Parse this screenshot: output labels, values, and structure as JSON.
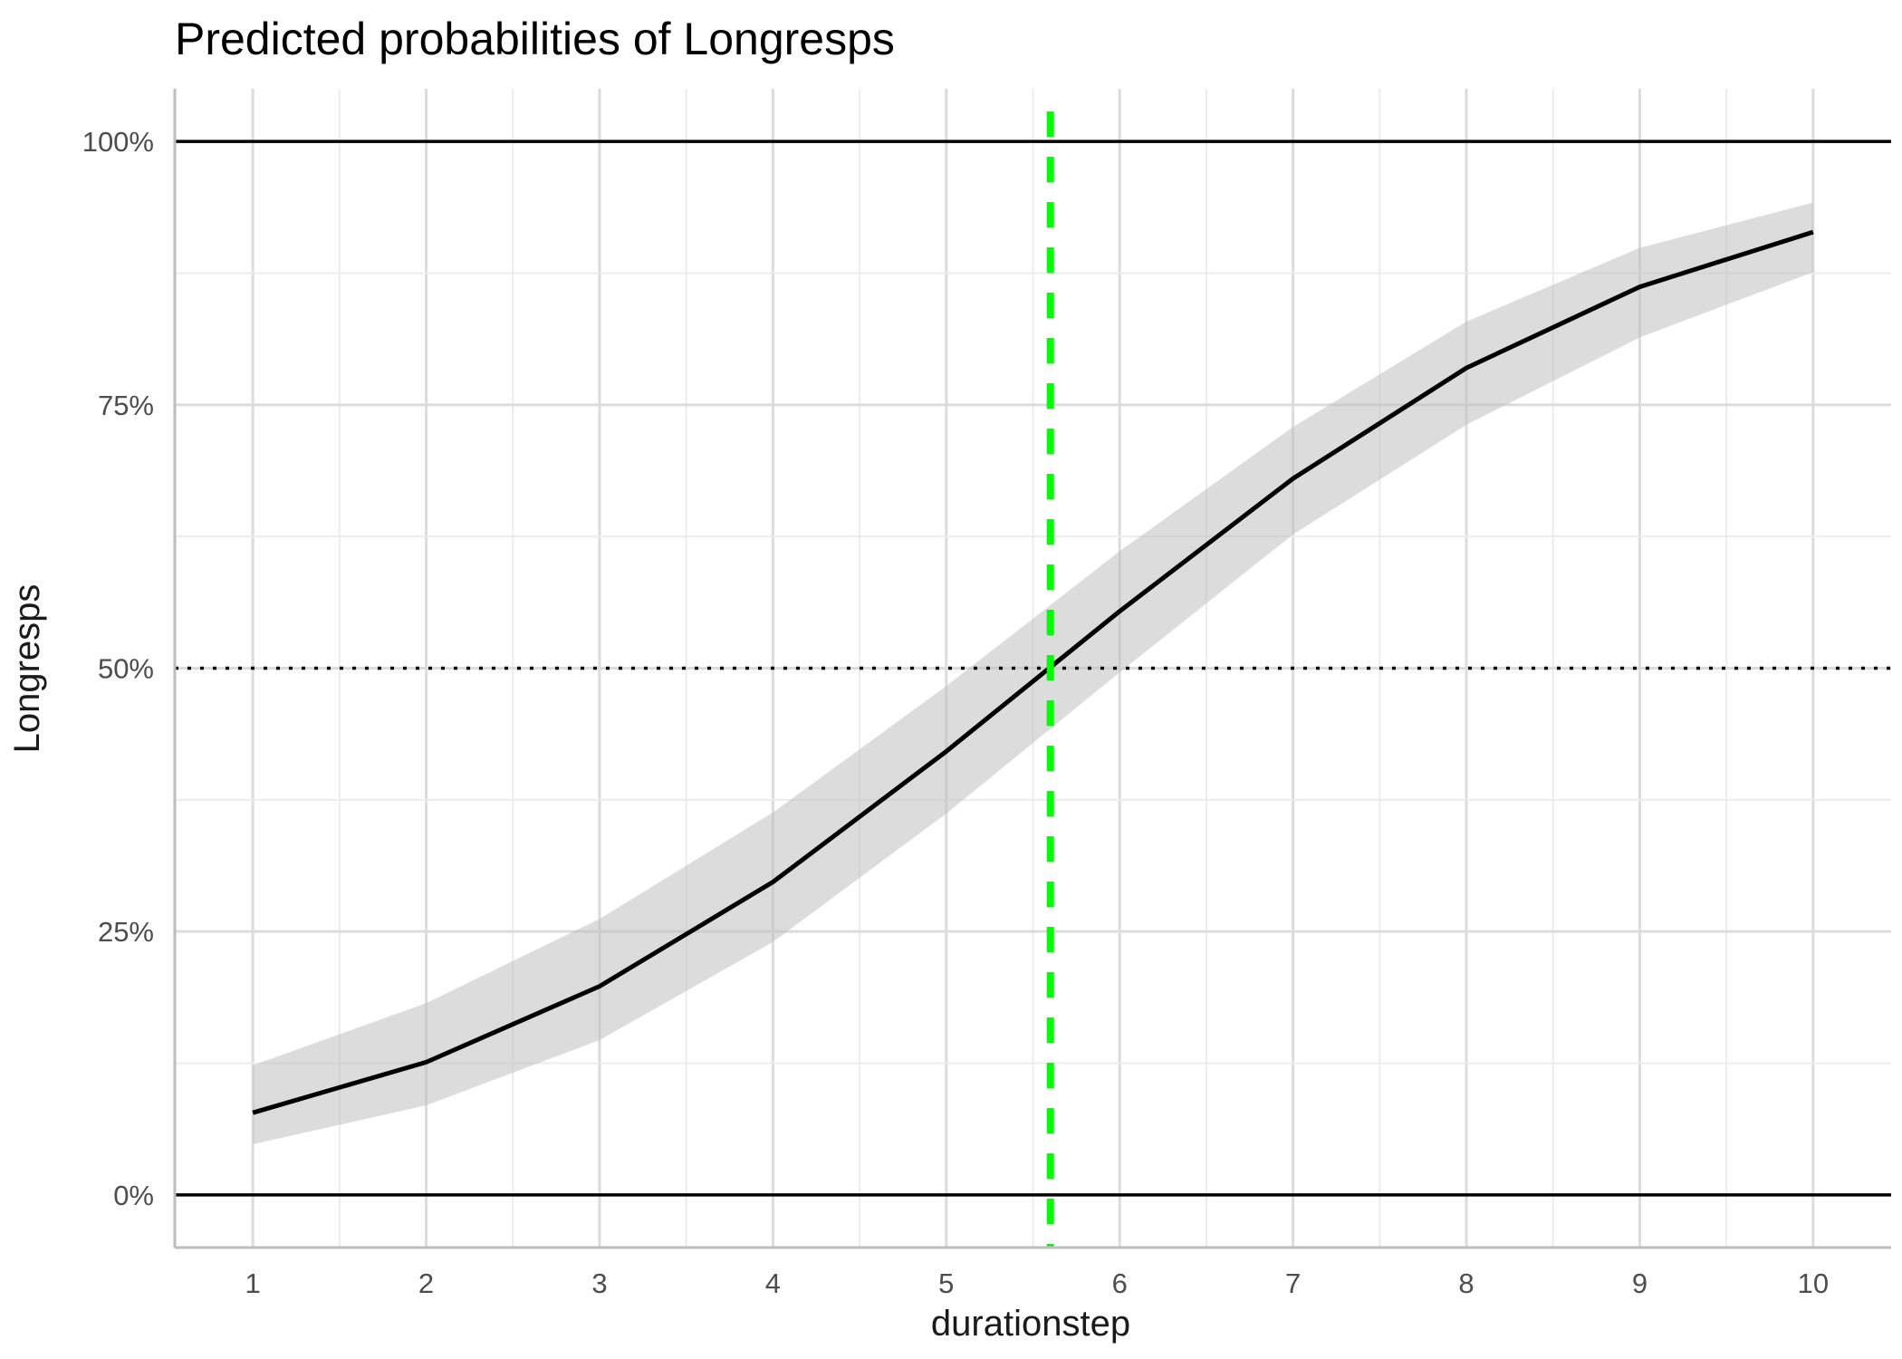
{
  "chart_data": {
    "type": "line",
    "title": "Predicted probabilities of Longresps",
    "xlabel": "durationstep",
    "ylabel": "Longresps",
    "x": [
      1,
      2,
      3,
      4,
      5,
      6,
      7,
      8,
      9,
      10
    ],
    "xlim": [
      0.55,
      10.45
    ],
    "ylim": [
      -0.05,
      1.05
    ],
    "x_ticks": [
      1,
      2,
      3,
      4,
      5,
      6,
      7,
      8,
      9,
      10
    ],
    "y_ticks": [
      0,
      0.25,
      0.5,
      0.75,
      1.0
    ],
    "y_tick_labels": [
      "0%",
      "25%",
      "50%",
      "75%",
      "100%"
    ],
    "grid": true,
    "series": [
      {
        "values": [
          0.078,
          0.126,
          0.198,
          0.297,
          0.421,
          0.554,
          0.68,
          0.785,
          0.862,
          0.914
        ],
        "ci_lower": [
          0.048,
          0.085,
          0.147,
          0.24,
          0.362,
          0.496,
          0.627,
          0.731,
          0.814,
          0.876
        ],
        "ci_upper": [
          0.123,
          0.182,
          0.262,
          0.363,
          0.483,
          0.611,
          0.729,
          0.829,
          0.899,
          0.942
        ],
        "color": "#000000",
        "band_color": "#bfbfbf"
      }
    ],
    "reference_lines": [
      {
        "orientation": "horizontal",
        "value": 1.0,
        "style": "solid",
        "color": "#000000"
      },
      {
        "orientation": "horizontal",
        "value": 0.0,
        "style": "solid",
        "color": "#000000"
      },
      {
        "orientation": "horizontal",
        "value": 0.5,
        "style": "dotted",
        "color": "#000000"
      },
      {
        "orientation": "vertical",
        "value": 5.6,
        "style": "dashed",
        "color": "#00ff00"
      }
    ]
  }
}
